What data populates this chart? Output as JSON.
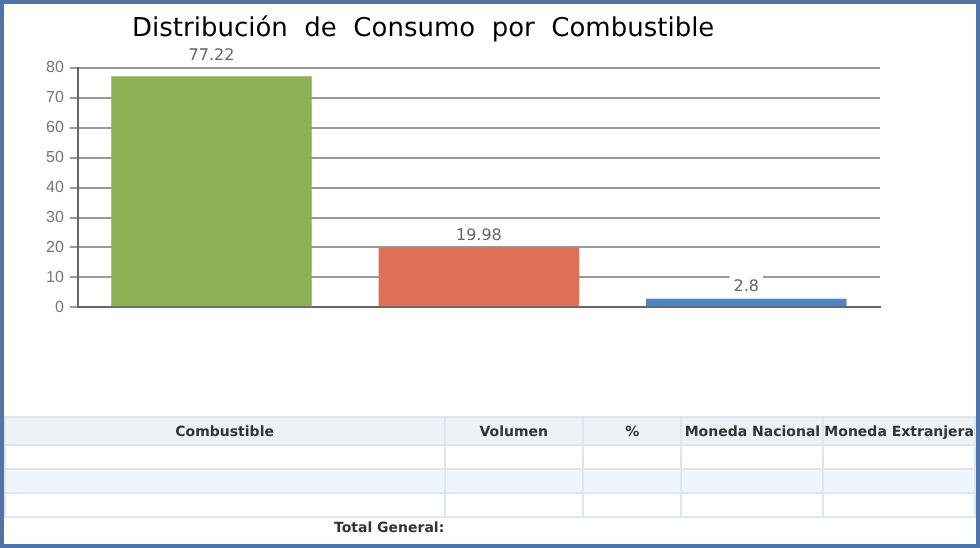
{
  "chart_data": {
    "type": "bar",
    "title": "Distribución  de  Consumo  por  Combustible",
    "categories": [
      null,
      null,
      null
    ],
    "values": [
      77.22,
      19.98,
      2.8
    ],
    "colors": [
      "#8db255",
      "#e07055",
      "#4a86c8"
    ],
    "ylim": [
      0,
      80
    ],
    "yticks": [
      0,
      10,
      20,
      30,
      40,
      50,
      60,
      70,
      80
    ],
    "grid": "y",
    "data_labels": true,
    "legend": false,
    "annotations": [
      "Combustible",
      "Volumen",
      "%",
      "Moneda Nacional",
      "Moneda Extranjera",
      "Total General:"
    ]
  }
}
